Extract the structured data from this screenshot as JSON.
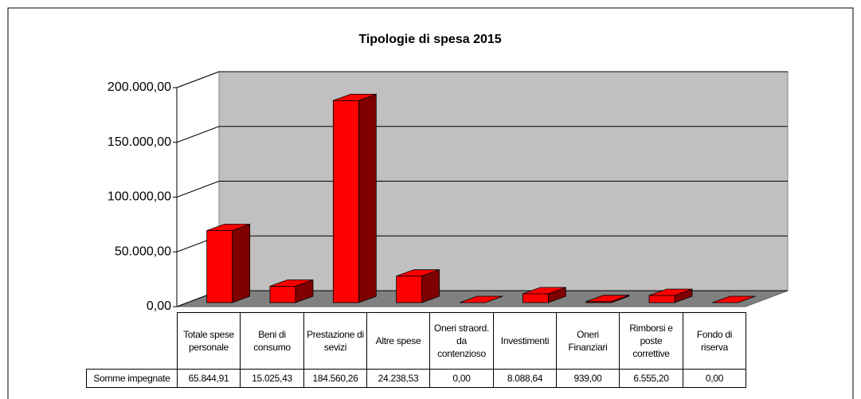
{
  "chart_data": {
    "type": "bar3d",
    "title": "Tipologie di spesa 2015",
    "categories": [
      "Totale spese personale",
      "Beni di consumo",
      "Prestazione di sevizi",
      "Altre spese",
      "Oneri straord. da contenzioso",
      "Investimenti",
      "Oneri Finanziari",
      "Rimborsi e poste correttive",
      "Fondo di riserva"
    ],
    "series": [
      {
        "name": "Somme impegnate",
        "color": "#ff0000",
        "values": [
          65844.91,
          15025.43,
          184560.26,
          24238.53,
          0,
          8088.64,
          939,
          6555.2,
          0
        ],
        "value_labels": [
          "65.844,91",
          "15.025,43",
          "184.560,26",
          "24.238,53",
          "0,00",
          "8.088,64",
          "939,00",
          "6.555,20",
          "0,00"
        ]
      }
    ],
    "ylim": [
      0,
      200000
    ],
    "yticks": [
      {
        "value": 0,
        "label": "0,00"
      },
      {
        "value": 50000,
        "label": "50.000,00"
      },
      {
        "value": 100000,
        "label": "100.000,00"
      },
      {
        "value": 150000,
        "label": "150.000,00"
      },
      {
        "value": 200000,
        "label": "200.000,00"
      }
    ],
    "grid": true
  }
}
